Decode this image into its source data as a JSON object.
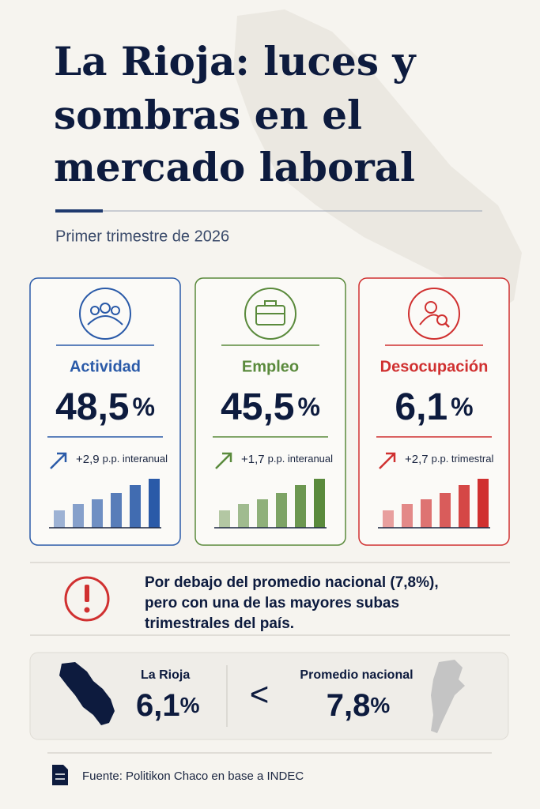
{
  "header": {
    "title_lines": [
      "La Rioja: luces y",
      "sombras en el",
      "mercado laboral"
    ],
    "subtitle": "Primer trimestre de 2026"
  },
  "cards": [
    {
      "label": "Actividad",
      "value": "48,5",
      "unit": "%",
      "change": "+2,9",
      "change_note": "p.p. interanual",
      "color": "#2a5aa8"
    },
    {
      "label": "Empleo",
      "value": "45,5",
      "unit": "%",
      "change": "+1,7",
      "change_note": "p.p. interanual",
      "color": "#5a8a3c"
    },
    {
      "label": "Desocupación",
      "value": "6,1",
      "unit": "%",
      "change": "+2,7",
      "change_note": "p.p. trimestral",
      "color": "#d03030"
    }
  ],
  "note": {
    "lines": [
      "Por debajo del promedio nacional (7,8%),",
      "pero con una de las mayores subas",
      "trimestrales del país."
    ]
  },
  "comparison": {
    "left_label": "La Rioja",
    "left_value": "6,1",
    "left_unit": "%",
    "symbol": "<",
    "right_label": "Promedio nacional",
    "right_value": "7,8",
    "right_unit": "%"
  },
  "footer": {
    "source": "Fuente: Politikon Chaco en base a INDEC"
  }
}
